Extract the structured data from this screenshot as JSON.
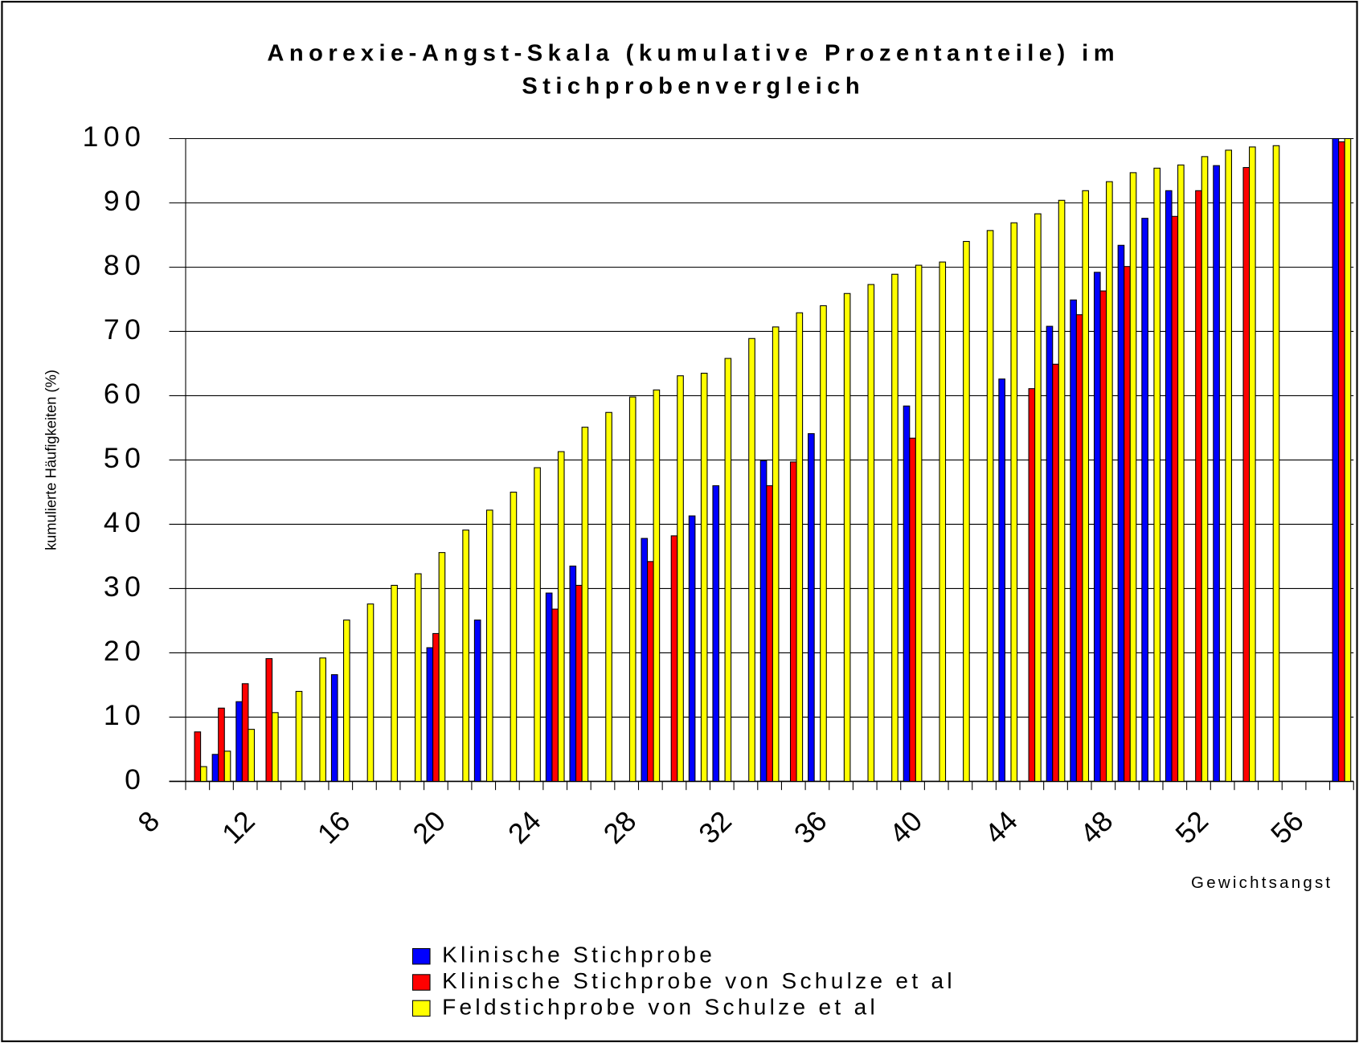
{
  "chart_data": {
    "type": "bar",
    "title": [
      "Anorexie-Angst-Skala (kumulative Prozentanteile) im",
      "Stichprobenvergleich"
    ],
    "y_label": "kumulierte Häufigkeiten (%)",
    "x_label": "Gewichtsangst",
    "categories": [
      8,
      null,
      null,
      null,
      12,
      null,
      null,
      null,
      16,
      null,
      null,
      null,
      20,
      null,
      null,
      null,
      24,
      null,
      null,
      null,
      28,
      null,
      null,
      null,
      32,
      null,
      null,
      null,
      36,
      null,
      null,
      null,
      40,
      null,
      null,
      null,
      44,
      null,
      null,
      null,
      48,
      null,
      null,
      null,
      52,
      null,
      null,
      null,
      56
    ],
    "series": [
      {
        "name": "Klinische Stichprobe",
        "color": "#0000ff",
        "values": [
          null,
          4.2,
          12.4,
          null,
          null,
          null,
          16.6,
          null,
          null,
          null,
          20.8,
          null,
          25.1,
          null,
          null,
          29.3,
          33.5,
          null,
          null,
          37.8,
          null,
          41.3,
          46,
          null,
          49.9,
          null,
          54.1,
          null,
          null,
          null,
          58.4,
          null,
          null,
          null,
          62.6,
          null,
          70.8,
          74.9,
          79.2,
          83.4,
          87.6,
          91.9,
          null,
          95.8,
          null,
          null,
          null,
          null,
          100
        ]
      },
      {
        "name": "Klinische Stichprobe von Schulze et al",
        "color": "#ff0000",
        "values": [
          7.7,
          11.4,
          15.2,
          19.1,
          null,
          null,
          null,
          null,
          null,
          null,
          23,
          null,
          null,
          null,
          null,
          26.8,
          30.5,
          null,
          null,
          34.2,
          38.2,
          null,
          null,
          null,
          46,
          49.7,
          null,
          null,
          null,
          null,
          53.4,
          null,
          null,
          null,
          null,
          61.1,
          64.9,
          72.6,
          76.3,
          80.1,
          null,
          87.9,
          91.9,
          null,
          95.5,
          null,
          null,
          null,
          99.5
        ]
      },
      {
        "name": "Feldstichprobe von Schulze et al",
        "color": "#ffff00",
        "values": [
          2.3,
          4.7,
          8.1,
          10.7,
          14,
          19.2,
          25.1,
          27.6,
          30.5,
          32.3,
          35.6,
          39.1,
          42.2,
          45,
          48.8,
          51.3,
          55.1,
          57.4,
          59.8,
          60.9,
          63.1,
          63.5,
          65.8,
          68.9,
          70.7,
          72.9,
          74,
          75.9,
          77.3,
          78.9,
          80.3,
          80.8,
          84,
          85.7,
          86.9,
          88.3,
          90.4,
          91.9,
          93.3,
          94.7,
          95.4,
          95.9,
          97.2,
          98.2,
          98.7,
          98.9,
          null,
          null,
          100
        ]
      }
    ],
    "ylim": [
      0,
      100
    ],
    "yticks": [
      0,
      10,
      20,
      30,
      40,
      50,
      60,
      70,
      80,
      90,
      100
    ],
    "grid": true
  }
}
